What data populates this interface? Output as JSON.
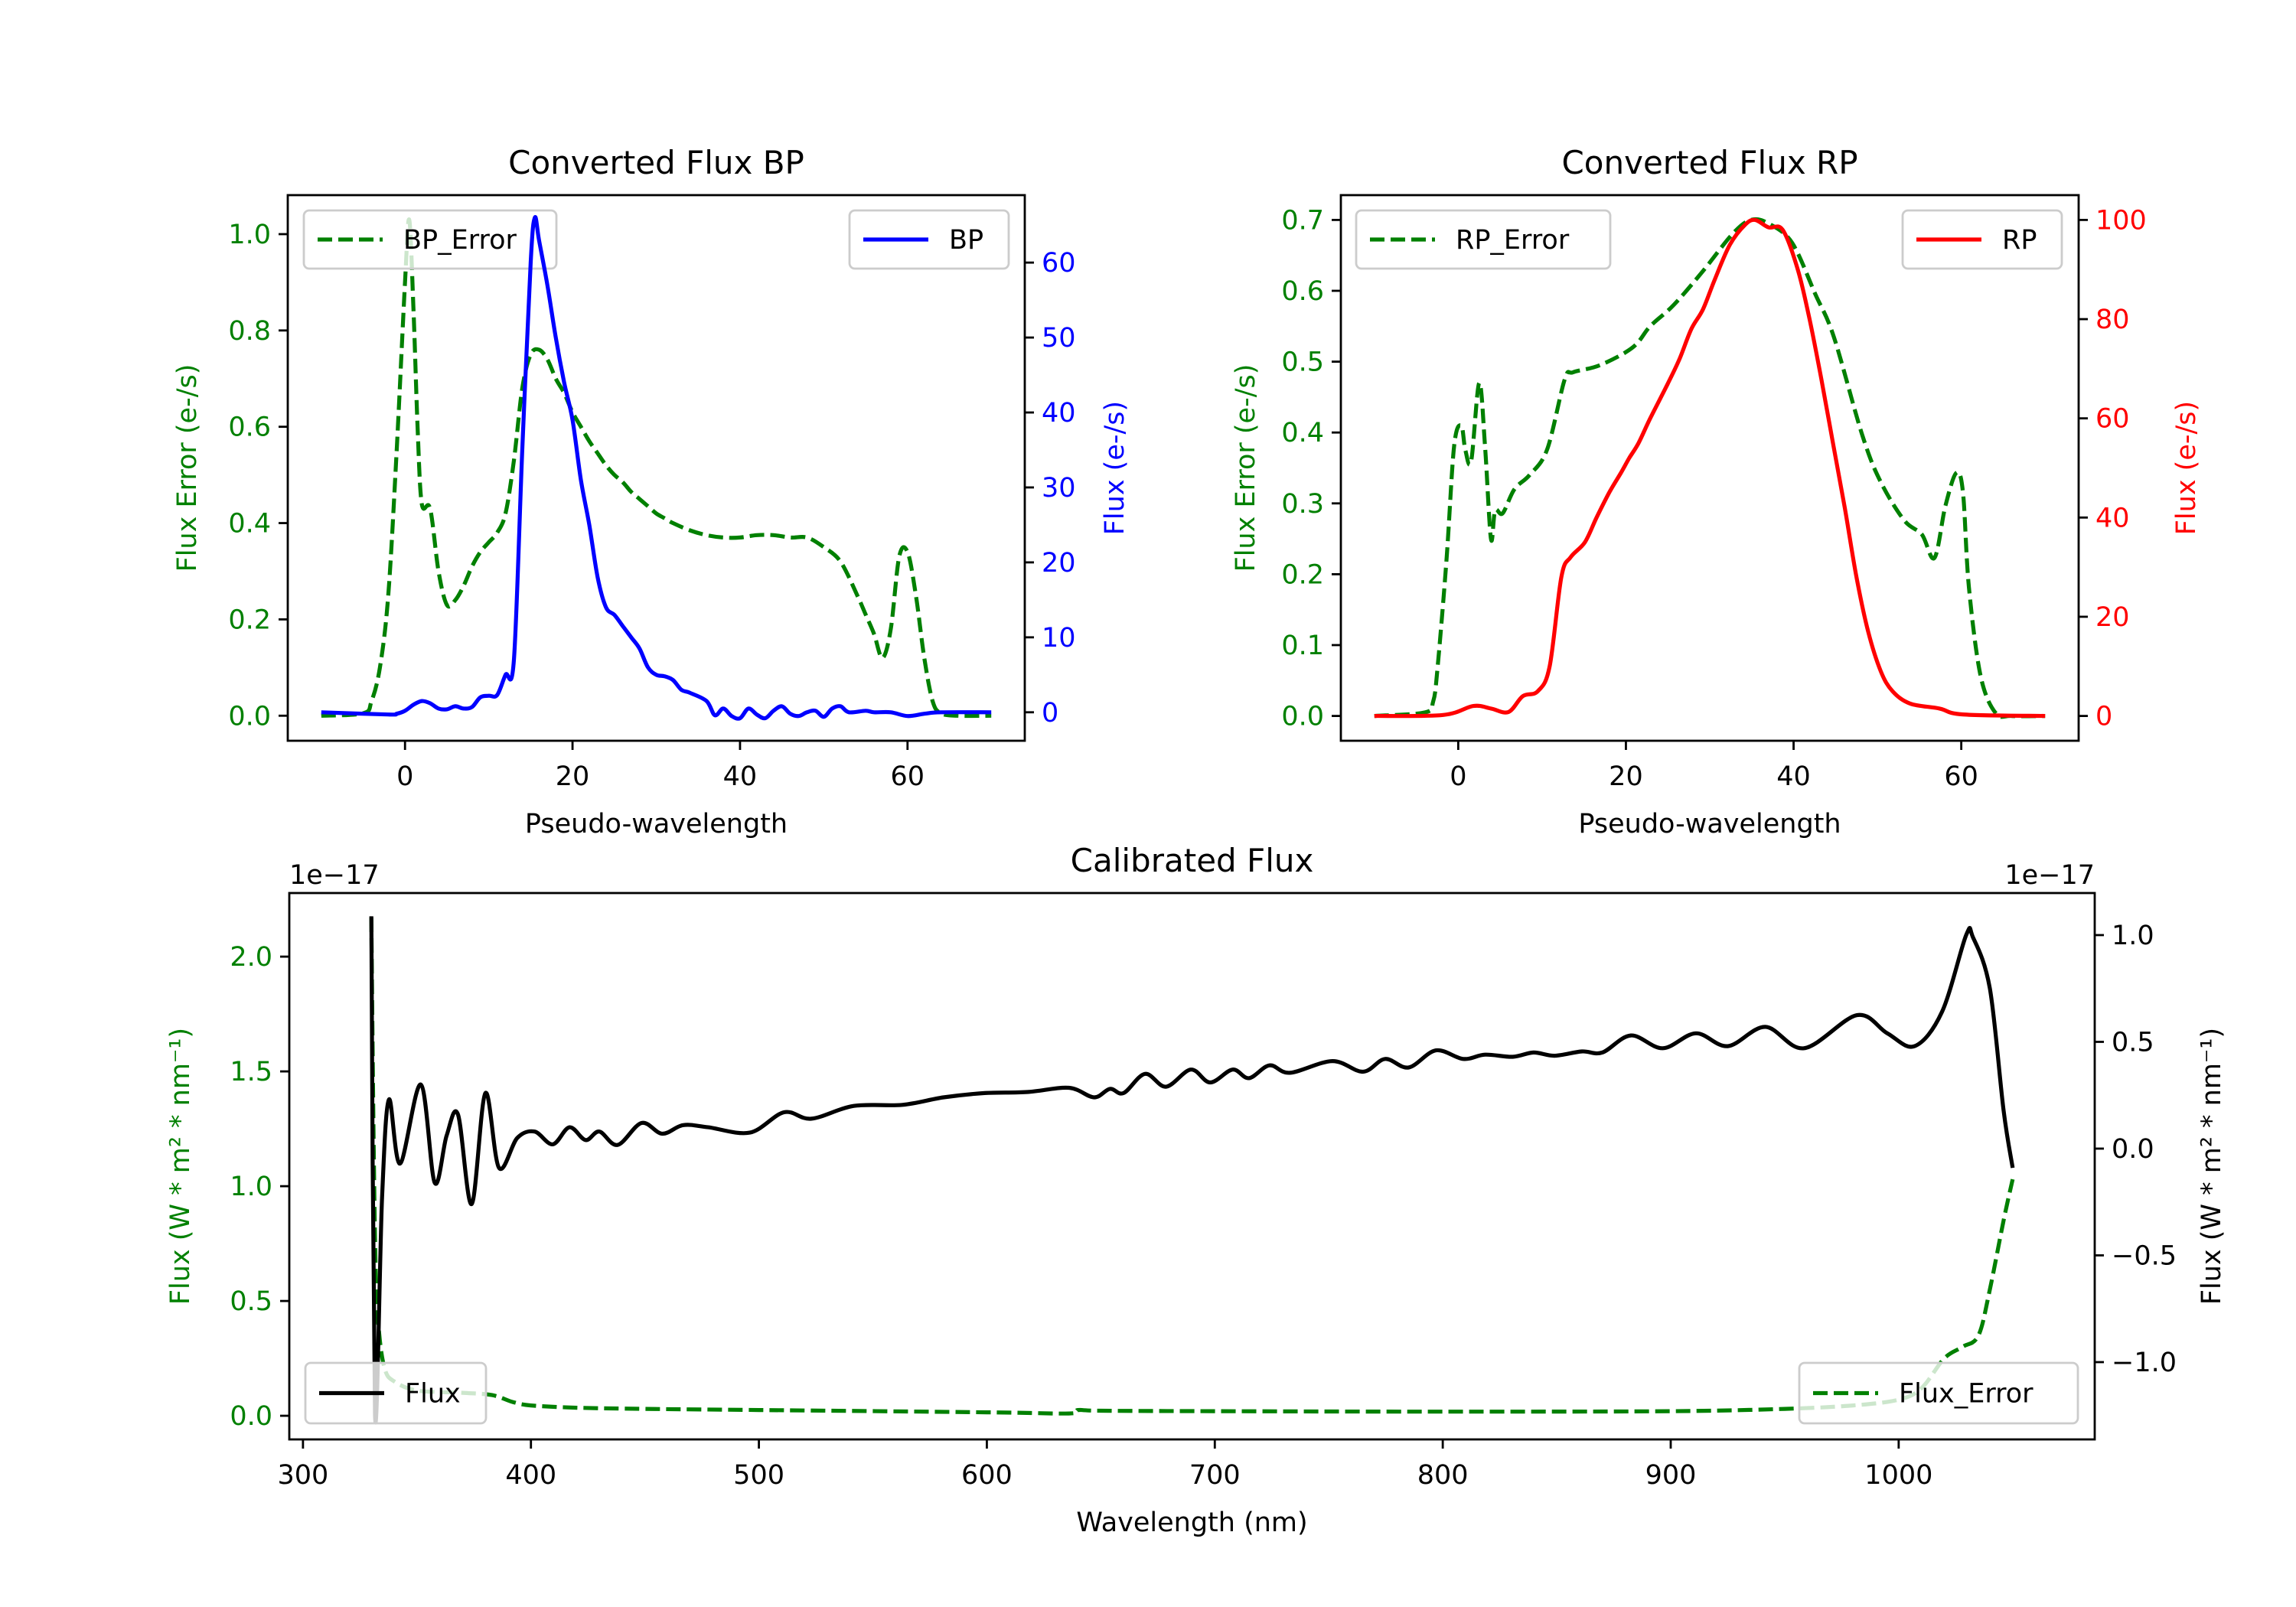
{
  "chart_data": [
    {
      "id": "bp",
      "type": "line",
      "title": "Converted Flux BP",
      "xlabel": "Pseudo-wavelength",
      "ylabel_left": "Flux Error (e-/s)",
      "ylabel_right": "Flux (e-/s)",
      "color_left": "#008000",
      "color_right": "#0000ff",
      "xlim": [
        -14,
        74
      ],
      "ylim_left": [
        -0.052,
        1.081
      ],
      "ylim_right": [
        -3.8,
        69.0
      ],
      "xticks": {
        "values": [
          0,
          20,
          40,
          60
        ],
        "labels": [
          "0",
          "20",
          "40",
          "60"
        ]
      },
      "yticks_left": {
        "values": [
          0,
          0.2,
          0.4,
          0.6,
          0.8,
          1.0
        ],
        "labels": [
          "0.0",
          "0.2",
          "0.4",
          "0.6",
          "0.8",
          "1.0"
        ]
      },
      "yticks_right": {
        "values": [
          0,
          10,
          20,
          30,
          40,
          50,
          60
        ],
        "labels": [
          "0",
          "10",
          "20",
          "30",
          "40",
          "50",
          "60"
        ]
      },
      "legends": [
        {
          "series": "BP_Error",
          "location": "upper left"
        },
        {
          "series": "BP",
          "location": "upper right"
        }
      ],
      "series": [
        {
          "name": "BP_Error",
          "axis": "left",
          "color": "#008000",
          "style": "dashed",
          "x": [
            -10,
            -5,
            -4,
            -3,
            -2,
            -1,
            0,
            0.5,
            1,
            1.5,
            2,
            3,
            4,
            5,
            6,
            7,
            8,
            9,
            10,
            11,
            12,
            13,
            14,
            15,
            16,
            17,
            18,
            19,
            20,
            21,
            22,
            23,
            24,
            25,
            26,
            27,
            28,
            29,
            30,
            31,
            32,
            34,
            36,
            38,
            40,
            42,
            44,
            46,
            48,
            50,
            52,
            54,
            55,
            56,
            57,
            58,
            59,
            60,
            61,
            62,
            63,
            64,
            66,
            70
          ],
          "y": [
            0,
            0.005,
            0.03,
            0.1,
            0.25,
            0.55,
            0.9,
            1.03,
            0.85,
            0.6,
            0.44,
            0.43,
            0.3,
            0.23,
            0.24,
            0.27,
            0.31,
            0.34,
            0.36,
            0.38,
            0.42,
            0.53,
            0.68,
            0.75,
            0.76,
            0.74,
            0.7,
            0.67,
            0.63,
            0.6,
            0.57,
            0.545,
            0.52,
            0.5,
            0.485,
            0.465,
            0.45,
            0.435,
            0.42,
            0.41,
            0.4,
            0.385,
            0.375,
            0.37,
            0.37,
            0.375,
            0.375,
            0.37,
            0.37,
            0.35,
            0.32,
            0.25,
            0.21,
            0.17,
            0.12,
            0.18,
            0.33,
            0.34,
            0.25,
            0.12,
            0.03,
            0.005,
            0,
            0
          ]
        },
        {
          "name": "BP",
          "axis": "right",
          "color": "#0000ff",
          "style": "solid",
          "x": [
            -10,
            -2,
            -1,
            0,
            1,
            2,
            3,
            4,
            5,
            6,
            7,
            8,
            9,
            10,
            11,
            12,
            13,
            14,
            15,
            15.5,
            16,
            17,
            18,
            19,
            20,
            21,
            22,
            23,
            24,
            25,
            26,
            27,
            28,
            29,
            30,
            31,
            32,
            33,
            34,
            36,
            37,
            38,
            39,
            40,
            41,
            42,
            43,
            44,
            45,
            46,
            47,
            48,
            49,
            50,
            51,
            52,
            53,
            55,
            56,
            58,
            60,
            62,
            64,
            70
          ],
          "y": [
            0,
            -0.3,
            -0.2,
            0.2,
            1,
            1.5,
            1.2,
            0.5,
            0.4,
            0.8,
            0.5,
            0.7,
            2,
            2.2,
            2.3,
            5,
            7,
            35,
            60,
            66,
            63,
            57,
            50,
            44,
            39,
            31,
            25,
            18,
            14,
            13,
            11.5,
            10,
            8.5,
            6,
            5,
            4.8,
            4.3,
            3,
            2.6,
            1.5,
            -0.4,
            0.5,
            -0.5,
            -0.8,
            0.5,
            -0.3,
            -0.8,
            0.2,
            0.8,
            -0.2,
            -0.5,
            0,
            0.2,
            -0.6,
            0.5,
            0.8,
            0,
            0.2,
            0,
            0,
            -0.5,
            -0.2,
            0,
            0
          ]
        }
      ]
    },
    {
      "id": "rp",
      "type": "line",
      "title": "Converted Flux RP",
      "xlabel": "Pseudo-wavelength",
      "ylabel_left": "Flux Error (e-/s)",
      "ylabel_right": "Flux (e-/s)",
      "color_left": "#008000",
      "color_right": "#ff0000",
      "xlim": [
        -14,
        74
      ],
      "ylim_left": [
        -0.035,
        0.735
      ],
      "ylim_right": [
        -5,
        105
      ],
      "xticks": {
        "values": [
          0,
          20,
          40,
          60
        ],
        "labels": [
          "0",
          "20",
          "40",
          "60"
        ]
      },
      "yticks_left": {
        "values": [
          0,
          0.1,
          0.2,
          0.3,
          0.4,
          0.5,
          0.6,
          0.7
        ],
        "labels": [
          "0.0",
          "0.1",
          "0.2",
          "0.3",
          "0.4",
          "0.5",
          "0.6",
          "0.7"
        ]
      },
      "yticks_right": {
        "values": [
          0,
          20,
          40,
          60,
          80,
          100
        ],
        "labels": [
          "0",
          "20",
          "40",
          "60",
          "80",
          "100"
        ]
      },
      "legends": [
        {
          "series": "RP_Error",
          "location": "upper left"
        },
        {
          "series": "RP",
          "location": "upper right"
        }
      ],
      "series": [
        {
          "name": "RP_Error",
          "axis": "left",
          "color": "#008000",
          "style": "dashed",
          "x": [
            -10,
            -4,
            -3,
            -2.5,
            -1.4,
            -0.5,
            0.35,
            0.85,
            1.55,
            2.5,
            3.2,
            3.9,
            4.4,
            5.3,
            6.7,
            8.5,
            10.6,
            12.7,
            13.7,
            16.9,
            20.8,
            22.9,
            25.7,
            29.2,
            32.7,
            34.9,
            37,
            39.8,
            42.6,
            44.8,
            48.2,
            50.4,
            53.2,
            55.3,
            56.8,
            58.1,
            59.4,
            60.2,
            60.9,
            62.3,
            64.1,
            66,
            70
          ],
          "y": [
            0,
            0.005,
            0.02,
            0.064,
            0.22,
            0.38,
            0.41,
            0.375,
            0.36,
            0.47,
            0.38,
            0.25,
            0.29,
            0.286,
            0.32,
            0.34,
            0.376,
            0.475,
            0.485,
            0.495,
            0.52,
            0.55,
            0.58,
            0.628,
            0.68,
            0.7,
            0.695,
            0.668,
            0.595,
            0.535,
            0.396,
            0.33,
            0.276,
            0.256,
            0.223,
            0.296,
            0.343,
            0.316,
            0.183,
            0.057,
            0.004,
            0,
            0
          ]
        },
        {
          "name": "RP",
          "axis": "right",
          "color": "#ff0000",
          "style": "solid",
          "x": [
            -10,
            -1.8,
            1.8,
            3.9,
            6,
            7.7,
            9.5,
            10.9,
            12.3,
            13.4,
            15.1,
            16.5,
            18,
            19.4,
            20.4,
            21.5,
            22.9,
            25,
            26.4,
            27.8,
            29.2,
            30.6,
            32.4,
            34.2,
            35.4,
            37,
            38.7,
            40.5,
            41.9,
            43.3,
            44.7,
            46.1,
            47.5,
            48.9,
            50.4,
            51.8,
            53.9,
            57.4,
            60.2,
            70
          ],
          "y": [
            0,
            0.2,
            2,
            1.5,
            0.8,
            4,
            5,
            10,
            28,
            32,
            35,
            40,
            45,
            49,
            52,
            55,
            60,
            67,
            72,
            78,
            82,
            88,
            95,
            99,
            100,
            98.5,
            98,
            90,
            80,
            68,
            55,
            42,
            28,
            17,
            9,
            5,
            2.5,
            1.5,
            0.3,
            0
          ]
        }
      ]
    },
    {
      "id": "calibrated",
      "type": "line",
      "title": "Calibrated Flux",
      "xlabel": "Wavelength (nm)",
      "ylabel_left": "Flux (W * m² * nm⁻¹)",
      "ylabel_right": "Flux (W * m² * nm⁻¹)",
      "color_left": "#008000",
      "color_right": "#000000",
      "offset_left": "1e−17",
      "offset_right": "1e−17",
      "xlim": [
        294,
        1086
      ],
      "ylim_left": [
        -0.103,
        2.277
      ],
      "ylim_right": [
        -1.362,
        1.197
      ],
      "xticks": {
        "values": [
          300,
          400,
          500,
          600,
          700,
          800,
          900,
          1000
        ],
        "labels": [
          "300",
          "400",
          "500",
          "600",
          "700",
          "800",
          "900",
          "1000"
        ]
      },
      "yticks_left": {
        "values": [
          0,
          0.5,
          1.0,
          1.5,
          2.0
        ],
        "labels": [
          "0.0",
          "0.5",
          "1.0",
          "1.5",
          "2.0"
        ]
      },
      "yticks_right": {
        "values": [
          -1.0,
          -0.5,
          0,
          0.5,
          1.0
        ],
        "labels": [
          "−1.0",
          "−0.5",
          "0.0",
          "0.5",
          "1.0"
        ]
      },
      "legends": [
        {
          "series": "Flux_Error",
          "location": "lower right"
        },
        {
          "series": "Flux",
          "location": "lower left"
        }
      ],
      "series": [
        {
          "name": "Flux_Error",
          "axis": "left",
          "color": "#008000",
          "style": "dashed",
          "x": [
            330,
            331,
            332,
            333.5,
            336,
            340,
            350,
            370,
            383,
            392,
            400,
            420,
            450,
            500,
            600,
            636,
            640,
            650,
            700,
            800,
            900,
            950,
            980,
            1000,
            1010,
            1020,
            1028,
            1035,
            1040,
            1046,
            1050
          ],
          "y": [
            2.17,
            1.2,
            0.6,
            0.35,
            0.2,
            0.15,
            0.11,
            0.1,
            0.09,
            0.06,
            0.045,
            0.035,
            0.03,
            0.025,
            0.015,
            0.01,
            0.025,
            0.022,
            0.02,
            0.018,
            0.02,
            0.03,
            0.045,
            0.07,
            0.12,
            0.25,
            0.3,
            0.35,
            0.55,
            0.85,
            1.03
          ]
        },
        {
          "name": "Flux",
          "axis": "right",
          "color": "#000000",
          "style": "solid",
          "x": [
            330,
            331.6,
            334.7,
            337.7,
            342.6,
            351.7,
            357.8,
            363,
            368,
            374,
            380,
            386,
            394,
            401.6,
            409.6,
            416.9,
            424,
            430,
            438,
            448.5,
            457.6,
            466.8,
            477.7,
            496,
            511,
            523,
            541.6,
            563,
            581,
            599,
            617.7,
            636,
            647,
            654,
            660,
            669.4,
            678.6,
            689.5,
            698,
            707.8,
            715,
            724,
            733,
            751.6,
            765,
            774.7,
            785,
            797,
            809,
            818.6,
            830.7,
            839.8,
            849,
            861,
            870,
            882.5,
            896.5,
            911,
            925,
            941.5,
            958.5,
            981.7,
            995,
            1007,
            1019,
            1029.6,
            1032.6,
            1040,
            1046,
            1050
          ],
          "y": [
            1.088,
            -1.25,
            -0.23,
            0.23,
            -0.07,
            0.3,
            -0.16,
            0.06,
            0.16,
            -0.26,
            0.26,
            -0.09,
            0.05,
            0.08,
            0.02,
            0.1,
            0.04,
            0.08,
            0.017,
            0.12,
            0.07,
            0.11,
            0.1,
            0.075,
            0.17,
            0.14,
            0.2,
            0.205,
            0.24,
            0.26,
            0.265,
            0.285,
            0.24,
            0.28,
            0.26,
            0.35,
            0.29,
            0.37,
            0.31,
            0.37,
            0.33,
            0.39,
            0.355,
            0.41,
            0.36,
            0.42,
            0.38,
            0.46,
            0.42,
            0.44,
            0.43,
            0.45,
            0.435,
            0.455,
            0.45,
            0.53,
            0.47,
            0.54,
            0.48,
            0.57,
            0.47,
            0.625,
            0.54,
            0.48,
            0.64,
            1.0,
            0.99,
            0.75,
            0.18,
            -0.09
          ]
        }
      ]
    }
  ]
}
